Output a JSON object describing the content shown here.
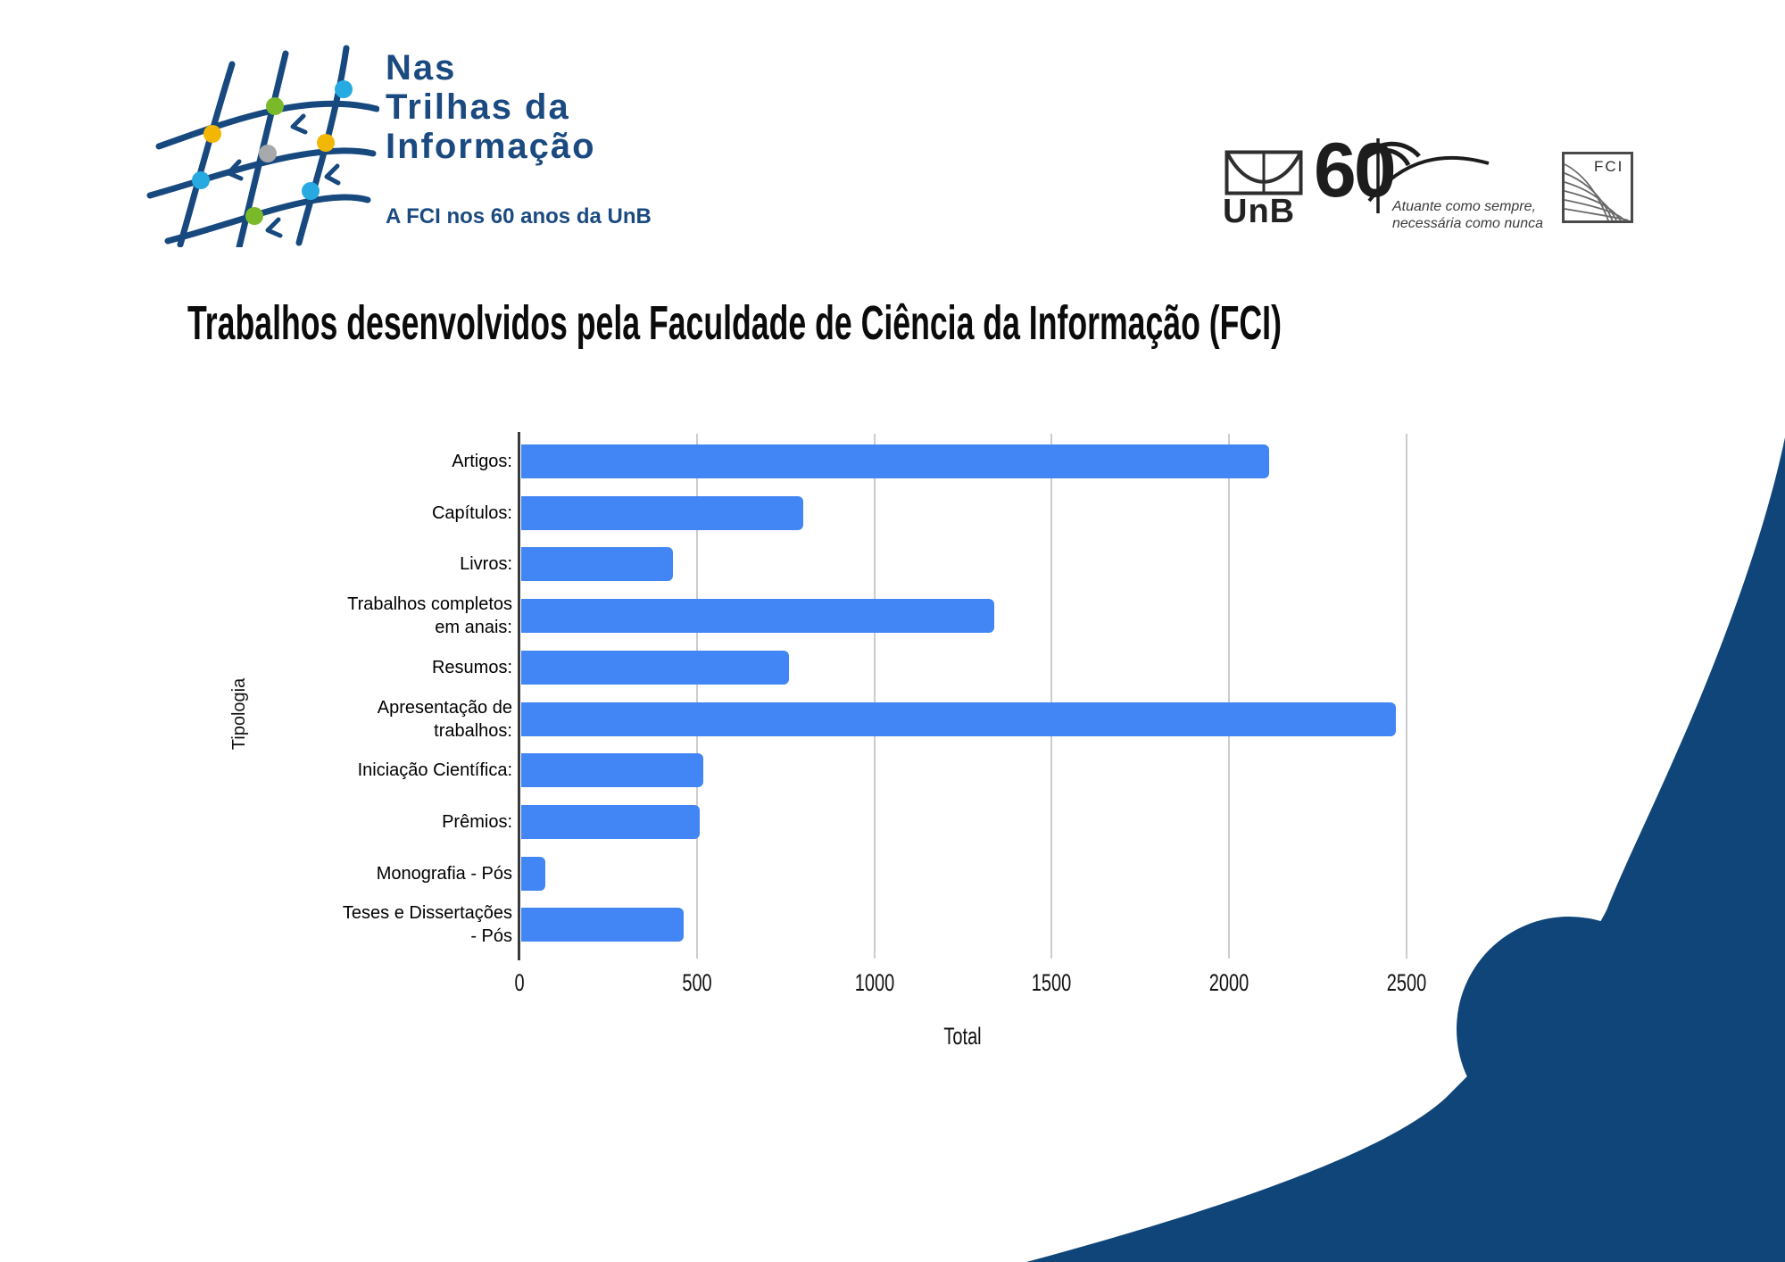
{
  "header": {
    "logo": {
      "title_lines": [
        "Nas",
        "Trilhas da",
        "Informação"
      ],
      "tagline": "A FCI nos 60 anos da UnB"
    },
    "unb": {
      "label": "UnB"
    },
    "unb60": {
      "number": "60",
      "slogan_lines": [
        "Atuante como sempre,",
        "necessária como nunca"
      ]
    },
    "fci": {
      "label": "FCI"
    }
  },
  "title": "Trabalhos desenvolvidos pela Faculdade de Ciência da Informação (FCI)",
  "chart_data": {
    "type": "bar",
    "orientation": "horizontal",
    "categories": [
      "Artigos:",
      "Capítulos:",
      "Livros:",
      "Trabalhos completos\nem anais:",
      "Resumos:",
      "Apresentação de\ntrabalhos:",
      "Iniciação Científica:",
      "Prêmios:",
      "Monografia - Pós",
      "Teses e Dissertações\n- Pós"
    ],
    "values": [
      2110,
      795,
      430,
      1335,
      755,
      2465,
      515,
      505,
      70,
      460
    ],
    "xlabel": "Total",
    "ylabel": "Tipologia",
    "xlim": [
      0,
      2500
    ],
    "xticks": [
      0,
      500,
      1000,
      1500,
      2000,
      2500
    ],
    "grid": true,
    "legend": "none",
    "bar_color": "#4285F4"
  },
  "colors": {
    "brand_blue": "#1A4A80",
    "wave_navy": "#0F4578",
    "bar_blue": "#4285F4",
    "gridline_gray": "#CCCCCC",
    "logo_dot_yellow": "#F2B705",
    "logo_dot_green": "#7AB929",
    "logo_dot_cyan": "#27AAE1",
    "logo_dot_gray": "#A7A9AC"
  }
}
